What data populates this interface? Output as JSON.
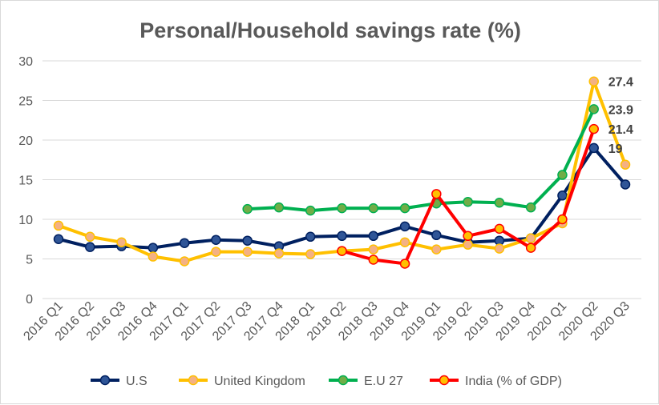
{
  "chart_data": {
    "type": "line",
    "title": "Personal/Household savings rate (%)",
    "xlabel": "",
    "ylabel": "",
    "ylim": [
      0,
      30
    ],
    "yticks": [
      0,
      5,
      10,
      15,
      20,
      25,
      30
    ],
    "grid": true,
    "legend_position": "bottom",
    "categories": [
      "2016 Q1",
      "2016 Q2",
      "2016 Q3",
      "2016 Q4",
      "2017 Q1",
      "2017 Q2",
      "2017 Q3",
      "2017 Q4",
      "2018 Q1",
      "2018 Q2",
      "2018 Q3",
      "2018 Q4",
      "2019 Q1",
      "2019 Q2",
      "2019 Q3",
      "2019 Q4",
      "2020 Q1",
      "2020 Q2",
      "2020 Q3"
    ],
    "series": [
      {
        "name": "U.S",
        "color": "#002060",
        "marker_fill": "#2f5597",
        "values": [
          7.5,
          6.5,
          6.6,
          6.4,
          7.0,
          7.4,
          7.3,
          6.6,
          7.8,
          7.9,
          7.9,
          9.1,
          8.0,
          7.1,
          7.3,
          7.6,
          13.0,
          19.0,
          14.4
        ],
        "labels": {
          "17": "19"
        }
      },
      {
        "name": "United Kingdom",
        "color": "#ffc000",
        "marker_fill": "#f4b183",
        "values": [
          9.2,
          7.8,
          7.1,
          5.3,
          4.7,
          5.9,
          5.9,
          5.7,
          5.6,
          6.0,
          6.2,
          7.1,
          6.2,
          6.8,
          6.3,
          7.6,
          9.5,
          27.4,
          16.9
        ],
        "labels": {
          "17": "27.4"
        }
      },
      {
        "name": "E.U 27",
        "color": "#00b050",
        "marker_fill": "#70ad47",
        "values": [
          null,
          null,
          null,
          null,
          null,
          null,
          11.3,
          11.5,
          11.1,
          11.4,
          11.4,
          11.4,
          12.0,
          12.2,
          12.1,
          11.5,
          15.6,
          23.9,
          null
        ],
        "labels": {
          "17": "23.9"
        }
      },
      {
        "name": "India (% of GDP)",
        "color": "#ff0000",
        "marker_fill": "#ffc000",
        "values": [
          null,
          null,
          null,
          null,
          null,
          null,
          null,
          null,
          null,
          6.0,
          4.9,
          4.4,
          13.2,
          7.9,
          8.8,
          6.4,
          10.0,
          21.4,
          null
        ],
        "labels": {
          "17": "21.4"
        }
      }
    ]
  }
}
